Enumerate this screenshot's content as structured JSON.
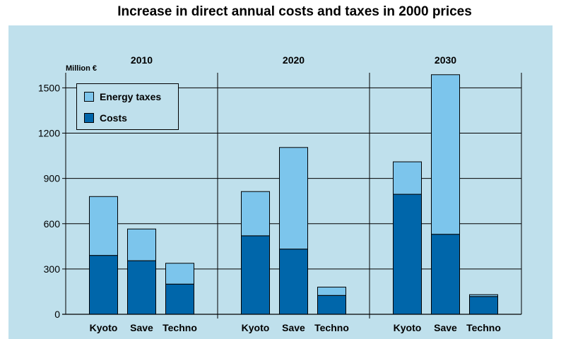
{
  "chart_data": {
    "type": "bar",
    "stacked": true,
    "title": "Increase in direct annual costs and taxes in 2000 prices",
    "ylabel": "Million €",
    "ylim": [
      0,
      1600
    ],
    "yticks": [
      0,
      300,
      600,
      900,
      1200,
      1500
    ],
    "grid": true,
    "legend_position": "top-left",
    "groups": [
      {
        "label": "2010",
        "categories": [
          "Kyoto",
          "Save",
          "Techno"
        ]
      },
      {
        "label": "2020",
        "categories": [
          "Kyoto",
          "Save",
          "Techno"
        ]
      },
      {
        "label": "2030",
        "categories": [
          "Kyoto",
          "Save",
          "Techno"
        ]
      }
    ],
    "series": [
      {
        "name": "Costs",
        "color": "#0066aa",
        "values": [
          390,
          355,
          200,
          520,
          432,
          125,
          795,
          530,
          118
        ]
      },
      {
        "name": "Energy taxes",
        "color": "#7cc5ec",
        "values": [
          390,
          210,
          138,
          293,
          673,
          55,
          215,
          1057,
          12
        ]
      }
    ],
    "colors": {
      "background": "#bfe0ec",
      "grid": "#000000"
    }
  }
}
